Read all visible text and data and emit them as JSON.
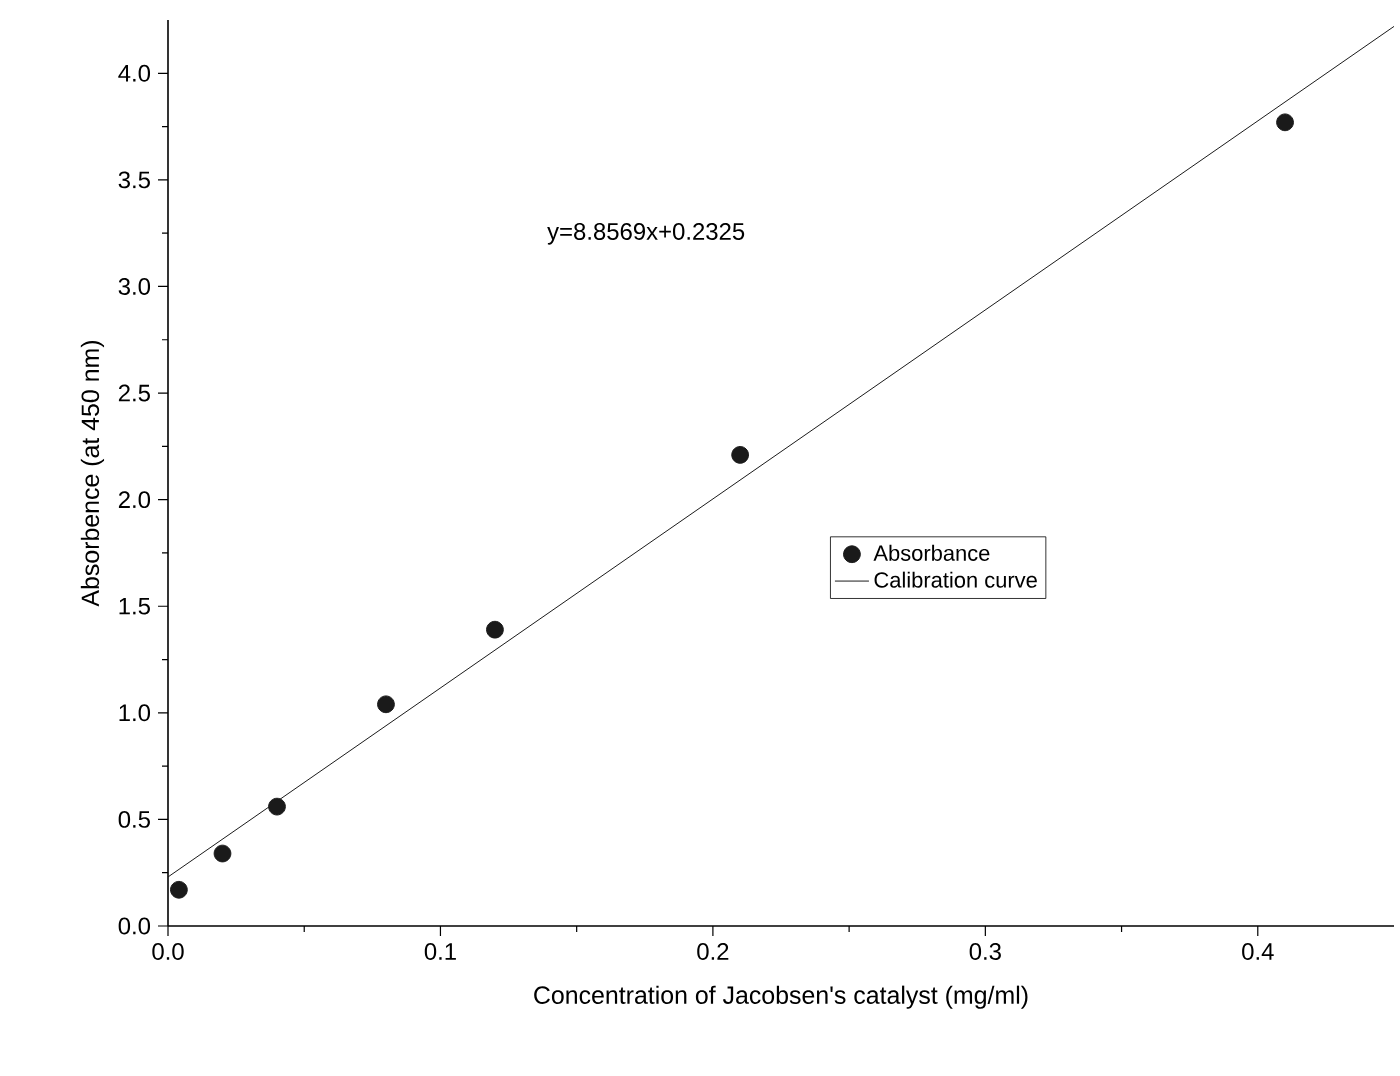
{
  "chart_data": {
    "type": "scatter",
    "xlabel": "Concentration of Jacobsen's catalyst (mg/ml)",
    "ylabel": "Absorbence (at 450 nm)",
    "annotations": [
      "y=8.8569x+0.2325"
    ],
    "series": [
      {
        "name": "Absorbance",
        "color": "#1a1a1a",
        "marker": "circle",
        "x": [
          0.004,
          0.02,
          0.04,
          0.08,
          0.12,
          0.21,
          0.41
        ],
        "values": [
          0.17,
          0.34,
          0.56,
          1.04,
          1.39,
          2.21,
          3.77
        ]
      },
      {
        "name": "Calibration curve",
        "type": "line",
        "color": "#1a1a1a",
        "marker": "none",
        "line_style": "solid",
        "x": [
          0,
          0.45
        ],
        "values": [
          0.23,
          4.22
        ]
      }
    ],
    "xlim": [
      0,
      0.45
    ],
    "ylim": [
      0,
      4.25
    ],
    "xticks": [
      {
        "value": 0,
        "label": "0.0"
      },
      0.1,
      0.2,
      0.3,
      0.4
    ],
    "yticks": [
      {
        "value": 0,
        "label": "0.0"
      },
      0.5,
      {
        "value": 1,
        "label": "1.0"
      },
      1.5,
      {
        "value": 2,
        "label": "2.0"
      },
      2.5,
      {
        "value": 3,
        "label": "3.0"
      },
      3.5,
      {
        "value": 4,
        "label": "4.0"
      }
    ],
    "grid": false,
    "legend": "right"
  }
}
